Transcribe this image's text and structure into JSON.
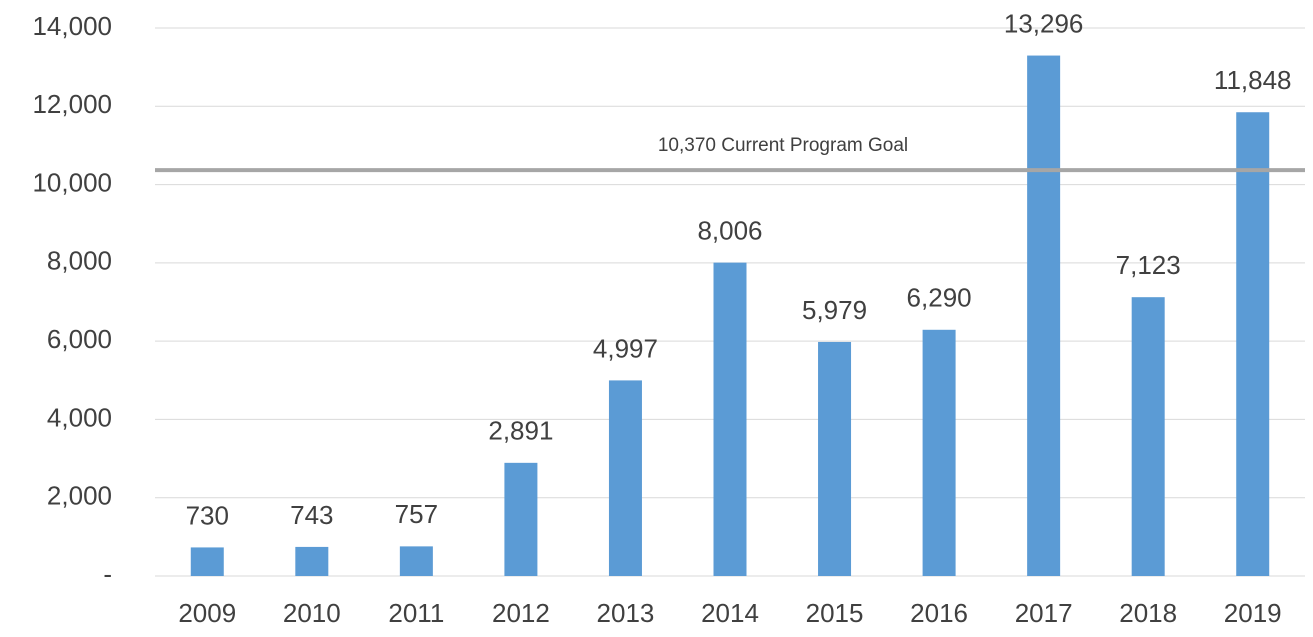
{
  "chart_data": {
    "type": "bar",
    "categories": [
      "2009",
      "2010",
      "2011",
      "2012",
      "2013",
      "2014",
      "2015",
      "2016",
      "2017",
      "2018",
      "2019"
    ],
    "values": [
      730,
      743,
      757,
      2891,
      4997,
      8006,
      5979,
      6290,
      13296,
      7123,
      11848
    ],
    "value_labels": [
      "730",
      "743",
      "757",
      "2,891",
      "4,997",
      "8,006",
      "5,979",
      "6,290",
      "13,296",
      "7,123",
      "11,848"
    ],
    "color": "#5b9bd5",
    "ylim": [
      0,
      14000
    ],
    "yticks": [
      {
        "value": 0,
        "label": "-"
      },
      {
        "value": 2000,
        "label": "2,000"
      },
      {
        "value": 4000,
        "label": "4,000"
      },
      {
        "value": 6000,
        "label": "6,000"
      },
      {
        "value": 8000,
        "label": "8,000"
      },
      {
        "value": 10000,
        "label": "10,000"
      },
      {
        "value": 12000,
        "label": "12,000"
      },
      {
        "value": 14000,
        "label": "14,000"
      }
    ],
    "grid": true,
    "goal": {
      "value": 10370,
      "label": "10,370 Current Program Goal",
      "color": "#a6a6a6"
    }
  }
}
